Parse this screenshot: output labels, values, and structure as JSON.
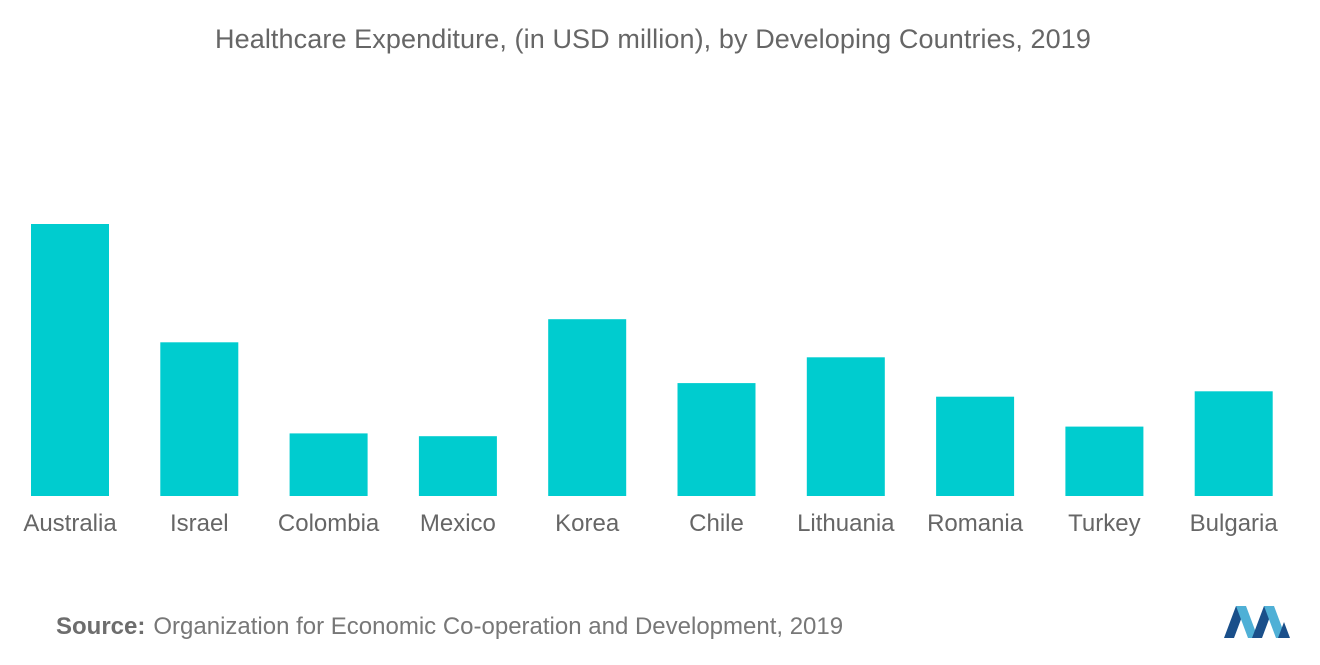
{
  "chart_data": {
    "type": "bar",
    "title": "Healthcare Expenditure, (in USD million), by Developing Countries, 2019",
    "categories": [
      "Australia",
      "Israel",
      "Colombia",
      "Mexico",
      "Korea",
      "Chile",
      "Lithuania",
      "Romania",
      "Turkey",
      "Bulgaria"
    ],
    "values": [
      100,
      56.5,
      23,
      22,
      65,
      41.5,
      51,
      36.5,
      25.5,
      38.5
    ],
    "xlabel": "",
    "ylabel": "",
    "ylim": [
      0,
      100
    ],
    "grid": false,
    "legend": "none",
    "bar_color": "#00cccf"
  },
  "source": {
    "label": "Source:",
    "text": "Organization for Economic Co-operation and Development, 2019"
  },
  "colors": {
    "bar": "#00cccf",
    "logo_dark": "#1a4f8a",
    "logo_light": "#4fb0d6"
  }
}
